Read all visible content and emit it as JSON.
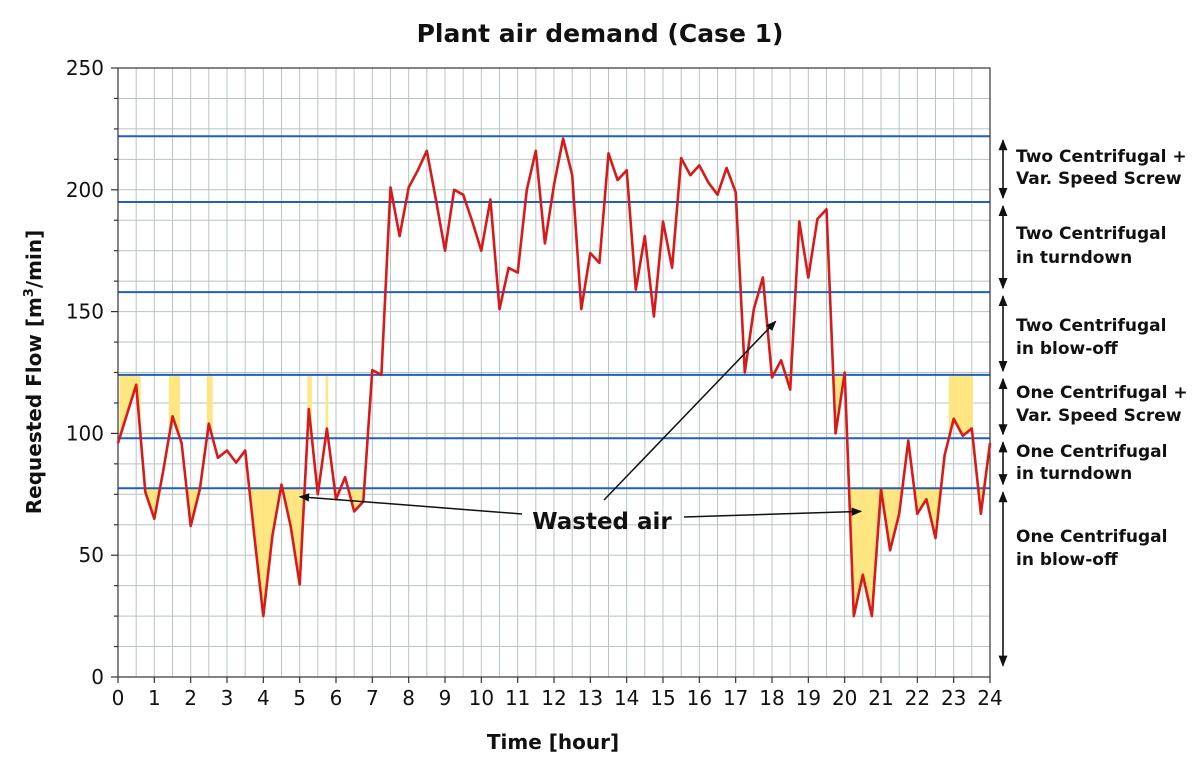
{
  "chart_data": {
    "type": "line",
    "title": "Plant air demand (Case 1)",
    "xlabel": "Time [hour]",
    "ylabel_main": "Requested Flow [m",
    "ylabel_sup": "3",
    "ylabel_end": "/min]",
    "xlim": [
      0,
      24
    ],
    "ylim": [
      0,
      250
    ],
    "x_ticks": [
      "0",
      "1",
      "2",
      "3",
      "4",
      "5",
      "6",
      "7",
      "8",
      "9",
      "10",
      "11",
      "12",
      "13",
      "14",
      "15",
      "16",
      "17",
      "18",
      "19",
      "20",
      "21",
      "22",
      "23",
      "24"
    ],
    "y_ticks": [
      "0",
      "50",
      "100",
      "150",
      "200",
      "250"
    ],
    "grid": true,
    "colors": {
      "series": "#d91a1a",
      "threshold": "#1f5fbf",
      "fill": "#ffe680",
      "grid": "#b8c4c0"
    },
    "series": [
      {
        "x": [
          0,
          0.5,
          0.75,
          1,
          1.25,
          1.5,
          1.75,
          2,
          2.25,
          2.5,
          2.75,
          3,
          3.25,
          3.5,
          3.75,
          4,
          4.25,
          4.5,
          4.75,
          5,
          5.25,
          5.5,
          5.75,
          6,
          6.25,
          6.5,
          6.75,
          7,
          7.25,
          7.5,
          7.75,
          8,
          8.25,
          8.5,
          8.75,
          9,
          9.25,
          9.5,
          9.75,
          10,
          10.25,
          10.5,
          10.75,
          11,
          11.25,
          11.5,
          11.75,
          12,
          12.25,
          12.5,
          12.75,
          13,
          13.25,
          13.5,
          13.75,
          14,
          14.25,
          14.5,
          14.75,
          15,
          15.25,
          15.5,
          15.75,
          16,
          16.25,
          16.5,
          16.75,
          17,
          17.25,
          17.5,
          17.75,
          18,
          18.25,
          18.5,
          18.75,
          19,
          19.25,
          19.5,
          19.75,
          20,
          20.25,
          20.5,
          20.75,
          21,
          21.25,
          21.5,
          21.75,
          22,
          22.25,
          22.5,
          22.75,
          23,
          23.25,
          23.5,
          23.75,
          24
        ],
        "y": [
          96,
          120,
          76,
          65,
          85,
          107,
          96,
          62,
          77,
          104,
          90,
          93,
          88,
          93,
          58,
          25,
          58,
          79,
          62,
          38,
          110,
          75,
          102,
          73,
          82,
          68,
          72,
          126,
          124,
          201,
          181,
          201,
          208,
          216,
          196,
          175,
          200,
          198,
          187,
          175,
          196,
          151,
          168,
          166,
          200,
          216,
          178,
          202,
          221,
          206,
          151,
          174,
          170,
          215,
          204,
          208,
          159,
          181,
          148,
          187,
          168,
          213,
          206,
          210,
          203,
          198,
          209,
          199,
          125,
          151,
          164,
          123,
          130,
          118,
          187,
          164,
          188,
          192,
          100,
          125,
          25,
          42,
          25,
          77,
          52,
          67,
          97,
          67,
          73,
          57,
          91,
          106,
          99,
          102,
          67,
          96
        ]
      }
    ],
    "thresholds": [
      77.5,
      98,
      124,
      158,
      195,
      222
    ],
    "zones": [
      {
        "line1": "Two Centrifugal +",
        "line2": "Var. Speed Screw"
      },
      {
        "line1": "Two Centrifugal",
        "line2": "in turndown"
      },
      {
        "line1": "Two Centrifugal",
        "line2": "in blow-off"
      },
      {
        "line1": "One Centrifugal +",
        "line2": "Var. Speed Screw"
      },
      {
        "line1": "One Centrifugal",
        "line2": "in turndown"
      },
      {
        "line1": "One Centrifugal",
        "line2": "in blow-off"
      }
    ],
    "annotation": "Wasted air"
  }
}
